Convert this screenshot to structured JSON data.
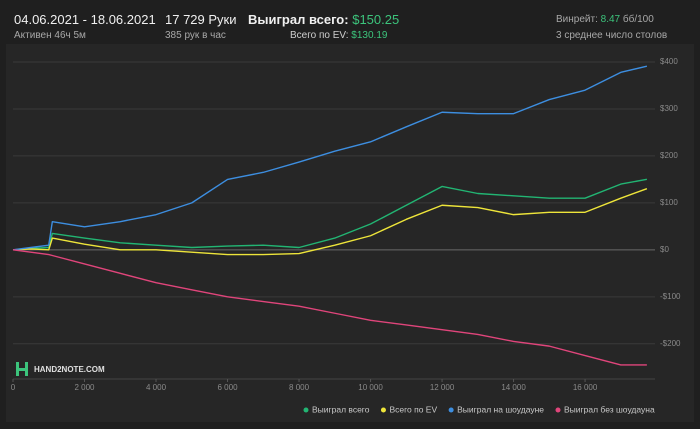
{
  "header": {
    "date_range": "04.06.2021 - 18.06.2021",
    "active": "Активен 46ч 5м",
    "hands": "17 729 Руки",
    "hands_per_hour": "385 рук в час",
    "won_label": "Выиграл всего:",
    "won_value": "$150.25",
    "ev_label": "Всего по EV:",
    "ev_value": "$130.19",
    "winrate_label": "Винрейт:",
    "winrate_value": "8.47",
    "winrate_unit": "бб/100",
    "tables": "3 среднее число столов"
  },
  "logo": "HAND2NOTE.COM",
  "chart_data": {
    "type": "line",
    "x": [
      0,
      500,
      1000,
      1100,
      2000,
      3000,
      4000,
      5000,
      6000,
      7000,
      8000,
      9000,
      10000,
      11000,
      12000,
      13000,
      14000,
      15000,
      16000,
      17000,
      17729
    ],
    "series": [
      {
        "name": "Выиграл всего",
        "color": "#22b573",
        "values": [
          0,
          3,
          5,
          35,
          25,
          15,
          10,
          5,
          8,
          10,
          5,
          25,
          55,
          95,
          135,
          120,
          115,
          110,
          110,
          140,
          150.25
        ]
      },
      {
        "name": "Всего по EV",
        "color": "#eee53a",
        "values": [
          0,
          2,
          0,
          25,
          12,
          0,
          0,
          -5,
          -10,
          -10,
          -8,
          10,
          30,
          65,
          95,
          90,
          75,
          80,
          80,
          110,
          130.19
        ]
      },
      {
        "name": "Выиграл на шоудауне",
        "color": "#3d8ee0",
        "values": [
          0,
          5,
          10,
          60,
          49,
          60,
          75,
          100,
          150,
          165,
          187,
          210,
          230,
          262,
          293,
          290,
          290,
          320,
          340,
          378,
          391
        ]
      },
      {
        "name": "Выиграл без шоудауна",
        "color": "#e0457b",
        "values": [
          0,
          -5,
          -10,
          -12,
          -30,
          -50,
          -70,
          -85,
          -100,
          -110,
          -120,
          -135,
          -150,
          -160,
          -170,
          -180,
          -195,
          -205,
          -225,
          -245,
          -245
        ]
      }
    ],
    "xlim": [
      0,
      17900
    ],
    "xticks": [
      0,
      {
        "value": 2000,
        "label": "2 000"
      },
      {
        "value": 4000,
        "label": "4 000"
      },
      {
        "value": 6000,
        "label": "6 000"
      },
      {
        "value": 8000,
        "label": "8 000"
      },
      {
        "value": 10000,
        "label": "10 000"
      },
      {
        "value": 12000,
        "label": "12 000"
      },
      {
        "value": 14000,
        "label": "14 000"
      },
      {
        "value": 16000,
        "label": "16 000"
      }
    ],
    "ylim": [
      -275,
      400
    ],
    "yticks": [
      {
        "value": 400,
        "label": "$400"
      },
      {
        "value": 300,
        "label": "$300"
      },
      {
        "value": 200,
        "label": "$200"
      },
      {
        "value": 100,
        "label": "$100"
      },
      {
        "value": 0,
        "label": "$0"
      },
      {
        "value": -100,
        "label": "-$100"
      },
      {
        "value": -200,
        "label": "-$200"
      }
    ],
    "grid": true
  }
}
